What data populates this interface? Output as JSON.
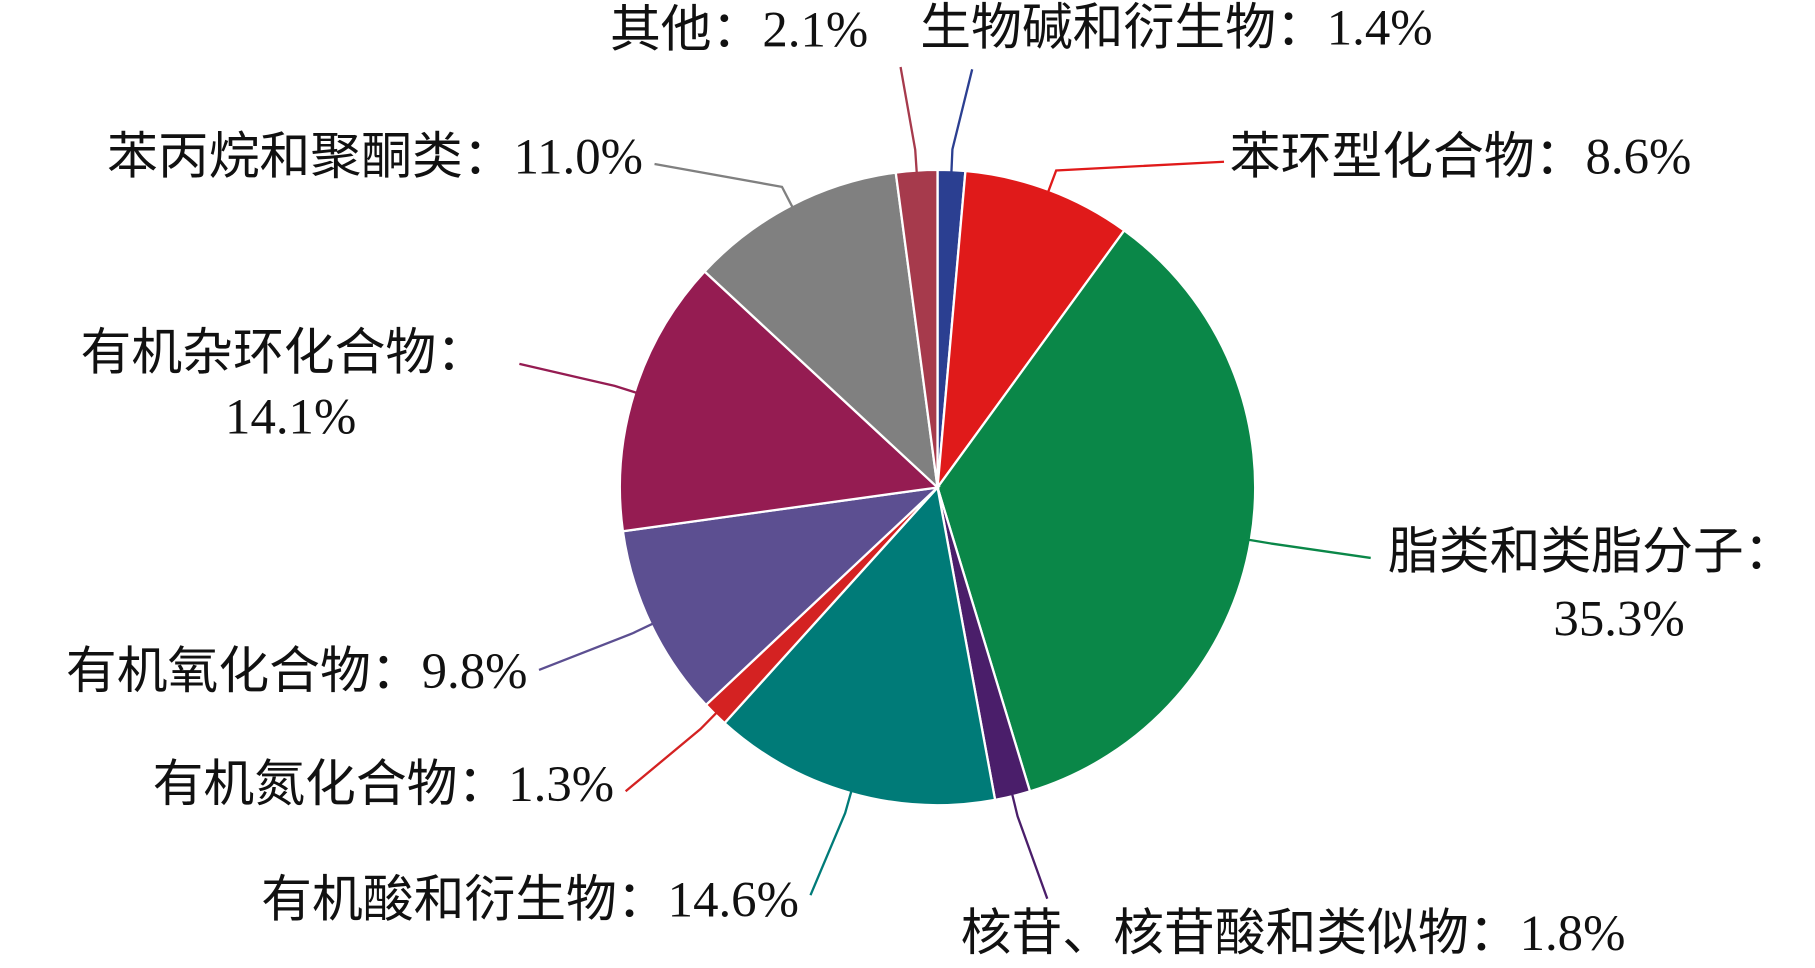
{
  "chart_data": {
    "type": "pie",
    "categories": [
      "生物碱和衍生物：",
      "苯环型化合物：",
      "脂类和类脂分子：",
      "核苷、核苷酸和类似物：",
      "有机酸和衍生物：",
      "有机氮化合物：",
      "有机氧化合物：",
      "有机杂环化合物：",
      "苯丙烷和聚酮类：",
      "其他："
    ],
    "values": [
      1.4,
      8.6,
      35.3,
      1.8,
      14.6,
      1.3,
      9.8,
      14.1,
      11.0,
      2.1
    ],
    "value_labels": [
      "1.4%",
      "8.6%",
      "35.3%",
      "1.8%",
      "14.6%",
      "1.3%",
      "9.8%",
      "14.1%",
      "11.0%",
      "2.1%"
    ],
    "colors": [
      "#2b3f91",
      "#e01a1a",
      "#0a8748",
      "#4a1e6a",
      "#007b78",
      "#d42222",
      "#5c4f91",
      "#951c52",
      "#808080",
      "#a63a4c"
    ]
  }
}
